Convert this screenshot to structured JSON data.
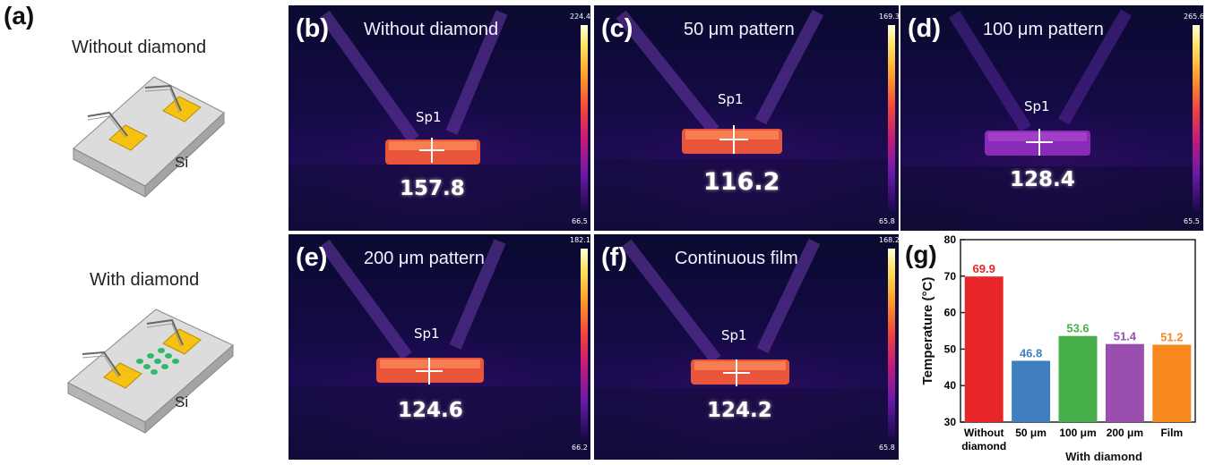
{
  "panel_a": {
    "label": "(a)",
    "top_title": "Without diamond",
    "bottom_title": "With diamond",
    "substrate_label": "Si"
  },
  "thermal_panels": [
    {
      "label": "(b)",
      "title": "Without diamond",
      "spot": "Sp1",
      "value": "157.8",
      "scale_max": "224.4",
      "scale_min": "66.5"
    },
    {
      "label": "(c)",
      "title": "50 μm pattern",
      "spot": "Sp1",
      "value": "116.2",
      "scale_max": "169.3",
      "scale_min": "65.8"
    },
    {
      "label": "(d)",
      "title": "100 μm pattern",
      "spot": "Sp1",
      "value": "128.4",
      "scale_max": "265.6",
      "scale_min": "65.5"
    },
    {
      "label": "(e)",
      "title": "200 μm pattern",
      "spot": "Sp1",
      "value": "124.6",
      "scale_max": "182.1",
      "scale_min": "66.2"
    },
    {
      "label": "(f)",
      "title": "Continuous film",
      "spot": "Sp1",
      "value": "124.2",
      "scale_max": "168.2",
      "scale_min": "65.8"
    }
  ],
  "chart_data": {
    "type": "bar",
    "label": "(g)",
    "categories": [
      "Without diamond",
      "50 μm",
      "100 μm",
      "200 μm",
      "Film"
    ],
    "values": [
      69.9,
      46.8,
      53.6,
      51.4,
      51.2
    ],
    "value_labels": [
      "69.9",
      "46.8",
      "53.6",
      "51.4",
      "51.2"
    ],
    "colors": [
      "#e8262a",
      "#3f7fbf",
      "#48b04a",
      "#9a4fae",
      "#f7871f"
    ],
    "ylabel": "Temperature (°C)",
    "group_label": "With diamond",
    "ylim": [
      30,
      80
    ],
    "yticks": [
      "30",
      "40",
      "50",
      "60",
      "70",
      "80"
    ],
    "grid": false,
    "legend": "none"
  }
}
